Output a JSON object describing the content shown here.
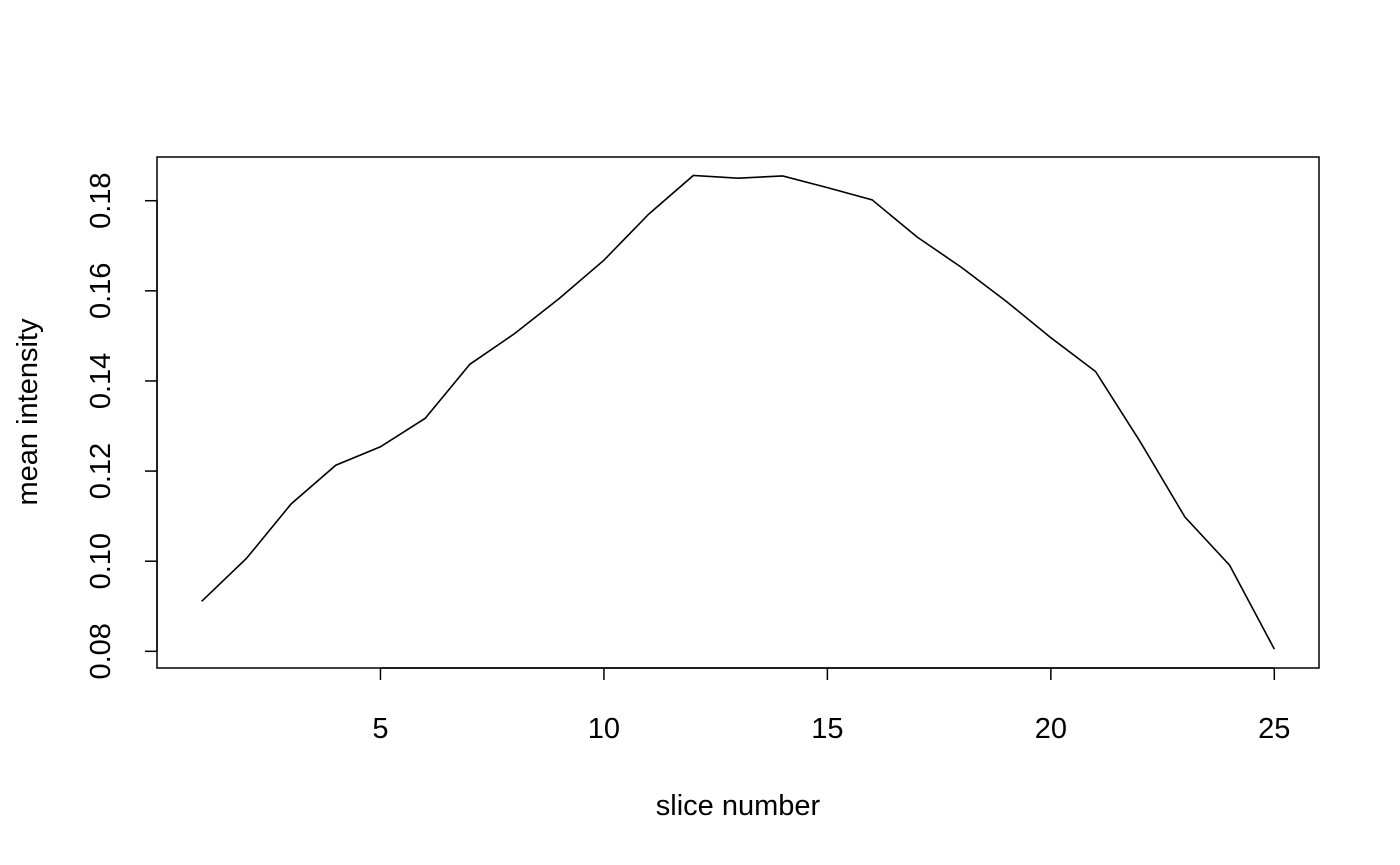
{
  "chart_data": {
    "type": "line",
    "title": "",
    "xlabel": "slice number",
    "ylabel": "mean intensity",
    "xlim": [
      0,
      26
    ],
    "ylim": [
      0.0763,
      0.1897
    ],
    "xticks": [
      5,
      10,
      15,
      20,
      25
    ],
    "yticks": [
      0.08,
      0.1,
      0.12,
      0.14,
      0.16,
      0.18
    ],
    "xtick_labels": [
      "5",
      "10",
      "15",
      "20",
      "25"
    ],
    "ytick_labels": [
      "0.08",
      "0.10",
      "0.12",
      "0.14",
      "0.16",
      "0.18"
    ],
    "grid": false,
    "legend": "none",
    "line_color": "#000000",
    "series": [
      {
        "x": [
          1,
          2,
          3,
          4,
          5,
          6,
          7,
          8,
          9,
          10,
          11,
          12,
          13,
          14,
          15,
          16,
          17,
          18,
          19,
          20,
          21,
          22,
          23,
          24,
          25
        ],
        "values": [
          0.0911,
          0.1006,
          0.1127,
          0.1213,
          0.1254,
          0.1317,
          0.1437,
          0.1505,
          0.1583,
          0.1668,
          0.177,
          0.1856,
          0.185,
          0.1855,
          0.1829,
          0.1802,
          0.172,
          0.1652,
          0.1577,
          0.1496,
          0.1421,
          0.1265,
          0.1098,
          0.0991,
          0.0805
        ]
      }
    ]
  }
}
